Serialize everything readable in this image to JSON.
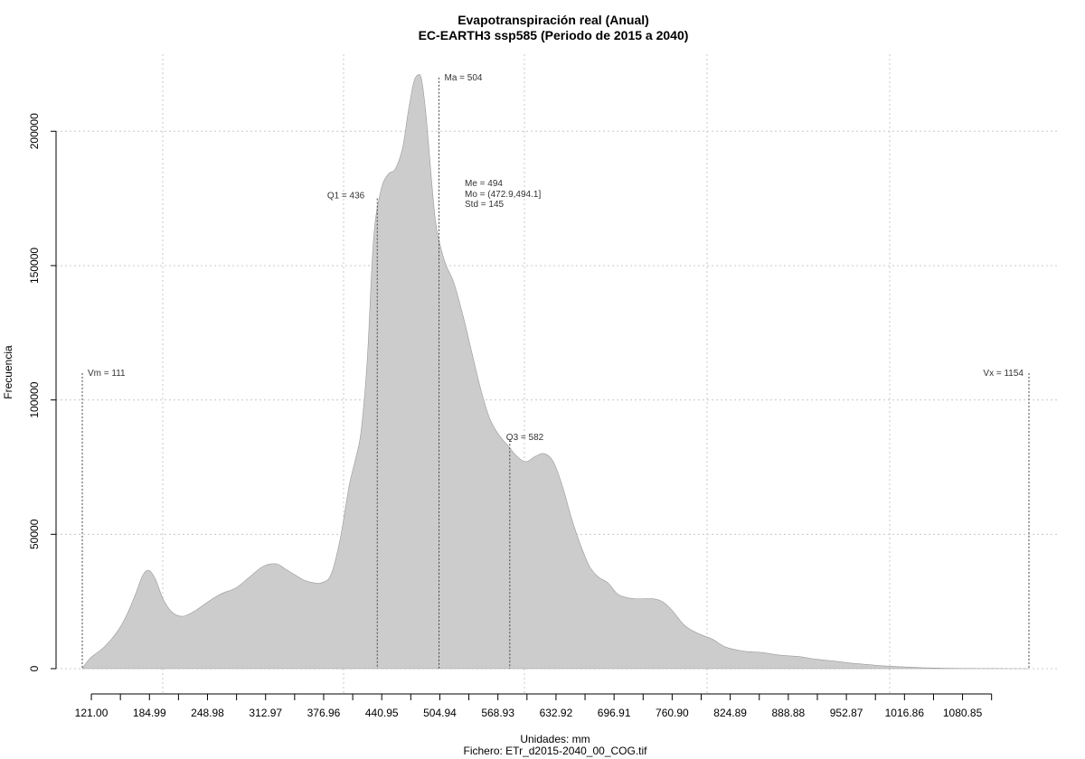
{
  "chart_data": {
    "type": "area",
    "title": "Evapotranspiración real (Anual)",
    "subtitle": "EC-EARTH3 ssp585 (Periodo de 2015 a 2040)",
    "xlabel": "Unidades: mm",
    "ylabel": "Frecuencia",
    "caption": "Fichero: ETr_d2015-2040_00_COG.tif",
    "xlim": [
      111,
      1154
    ],
    "ylim": [
      0,
      220000
    ],
    "grid": true,
    "fill_color": "#cccccc",
    "stroke_color": "#999999",
    "x_ticks": [
      121.0,
      184.99,
      248.98,
      312.97,
      376.96,
      440.95,
      504.94,
      568.93,
      632.92,
      696.91,
      760.9,
      824.89,
      888.88,
      952.87,
      1016.86,
      1080.85
    ],
    "x_tick_labels": [
      "121.00",
      "184.99",
      "248.98",
      "312.97",
      "376.96",
      "440.95",
      "504.94",
      "568.93",
      "632.92",
      "696.91",
      "760.90",
      "824.89",
      "888.88",
      "952.87",
      "1016.86",
      "1080.85"
    ],
    "y_ticks": [
      0,
      50000,
      100000,
      150000,
      200000
    ],
    "y_tick_labels": [
      "0",
      "50000",
      "100000",
      "150000",
      "200000"
    ],
    "x": [
      111,
      120,
      135,
      150,
      160,
      170,
      178,
      185,
      192,
      200,
      210,
      222,
      235,
      250,
      265,
      280,
      295,
      310,
      325,
      335,
      345,
      355,
      365,
      375,
      385,
      395,
      405,
      412,
      418,
      425,
      432,
      440,
      448,
      456,
      464,
      470,
      476,
      481,
      485,
      490,
      495,
      500,
      505,
      512,
      520,
      530,
      540,
      550,
      560,
      570,
      580,
      590,
      600,
      610,
      620,
      630,
      640,
      650,
      660,
      670,
      680,
      690,
      700,
      710,
      720,
      730,
      740,
      750,
      760,
      775,
      790,
      805,
      820,
      840,
      860,
      880,
      900,
      920,
      940,
      960,
      980,
      1000,
      1020,
      1040,
      1060,
      1080,
      1100,
      1120,
      1140,
      1154
    ],
    "values": [
      0,
      4000,
      8000,
      14000,
      20000,
      28000,
      35000,
      36500,
      33000,
      26000,
      21000,
      19500,
      21500,
      25000,
      28000,
      30000,
      34000,
      38000,
      39000,
      37000,
      35000,
      33000,
      32000,
      32000,
      35000,
      48000,
      68000,
      78000,
      88000,
      115000,
      160000,
      178000,
      184000,
      186000,
      194000,
      207000,
      218000,
      221000,
      219000,
      205000,
      185000,
      167000,
      158000,
      150000,
      144000,
      132000,
      118000,
      104000,
      93000,
      87000,
      83000,
      79000,
      77000,
      79000,
      80000,
      77000,
      68000,
      56000,
      46000,
      38000,
      34000,
      32000,
      28000,
      26500,
      26000,
      26000,
      26000,
      25000,
      22000,
      16000,
      13000,
      11000,
      8000,
      6500,
      6000,
      5000,
      4500,
      3500,
      2800,
      2000,
      1400,
      900,
      600,
      300,
      150,
      80,
      40,
      20,
      5,
      0
    ],
    "annotations": [
      {
        "label": "Vm = 111",
        "x": 111,
        "top": 110000
      },
      {
        "label": "Q1 = 436",
        "x": 436,
        "top": 175000
      },
      {
        "label": "Ma = 504",
        "x": 504,
        "top": 220000
      },
      {
        "label": "Q3 = 582",
        "x": 582,
        "top": 85000
      },
      {
        "label": "Vx = 1154",
        "x": 1154,
        "top": 110000
      }
    ],
    "stats_box": [
      "Me = 494",
      "Mo = (472.9,494.1]",
      "Std = 145"
    ]
  }
}
